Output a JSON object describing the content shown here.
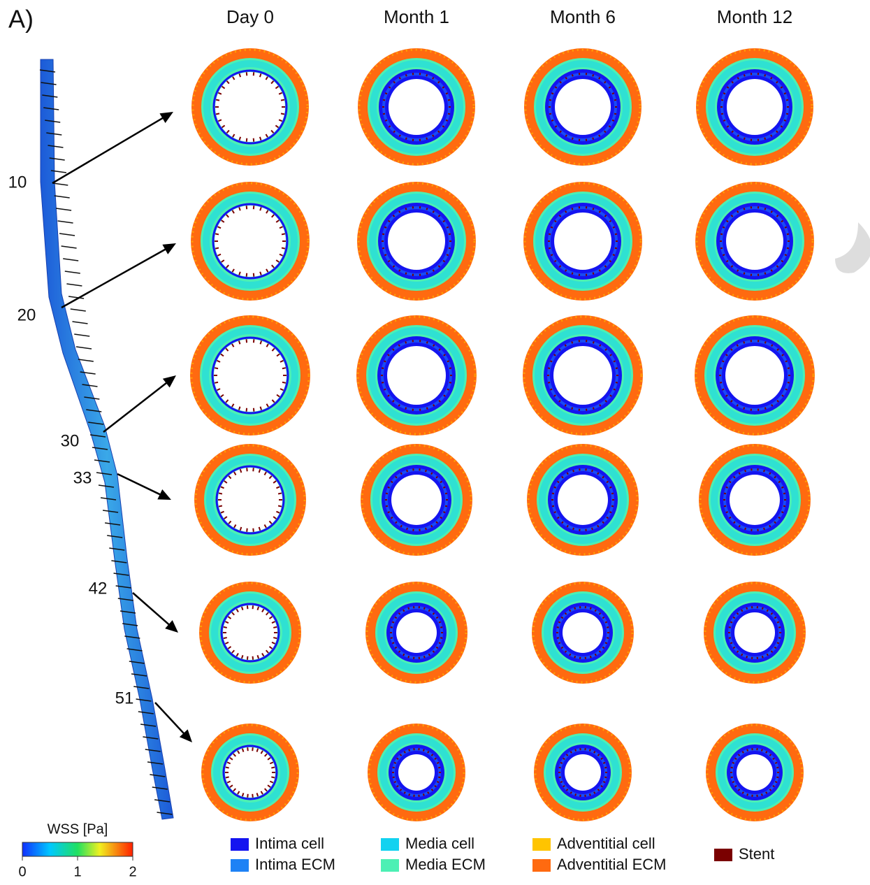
{
  "panel_label": "A)",
  "columns": [
    "Day 0",
    "Month 1",
    "Month 6",
    "Month 12"
  ],
  "sections": [
    10,
    20,
    30,
    33,
    42,
    51
  ],
  "colorbar": {
    "title": "WSS [Pa]",
    "lim": [
      0,
      2
    ],
    "ticks": [
      0,
      1,
      2
    ]
  },
  "legend": [
    {
      "label": "Intima cell",
      "color": "#1414f0"
    },
    {
      "label": "Intima ECM",
      "color": "#1e82f5"
    },
    {
      "label": "Media cell",
      "color": "#12d2f0"
    },
    {
      "label": "Media ECM",
      "color": "#4cf0b4"
    },
    {
      "label": "Adventitial cell",
      "color": "#ffc400"
    },
    {
      "label": "Adventitial ECM",
      "color": "#ff6a10"
    },
    {
      "label": "Stent",
      "color": "#7a0000"
    }
  ]
}
